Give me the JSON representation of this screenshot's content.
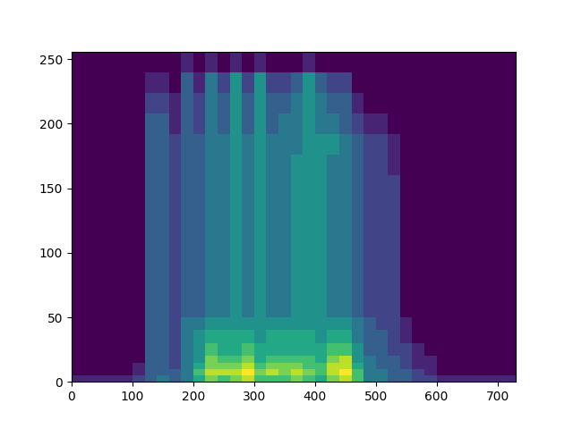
{
  "chart_data": {
    "type": "heatmap",
    "color": "viridis",
    "x_edges": [
      0,
      20,
      40,
      60,
      80,
      100,
      120,
      140,
      160,
      180,
      200,
      220,
      240,
      260,
      280,
      300,
      320,
      340,
      360,
      380,
      400,
      420,
      440,
      460,
      480,
      500,
      520,
      540,
      560,
      580,
      600,
      620,
      640,
      660,
      680,
      700,
      720,
      730
    ],
    "y_edges": [
      0,
      5,
      10,
      15,
      20,
      30,
      40,
      50,
      64,
      80,
      96,
      112,
      128,
      144,
      160,
      176,
      192,
      208,
      224,
      240,
      256
    ],
    "cells_by_x": [
      [
        1,
        0,
        0,
        0,
        0,
        0,
        0,
        0,
        0,
        0,
        0,
        0,
        0,
        0,
        0,
        0,
        0,
        0,
        0,
        0
      ],
      [
        1,
        0,
        0,
        0,
        0,
        0,
        0,
        0,
        0,
        0,
        0,
        0,
        0,
        0,
        0,
        0,
        0,
        0,
        0,
        0
      ],
      [
        1,
        0,
        0,
        0,
        0,
        0,
        0,
        0,
        0,
        0,
        0,
        0,
        0,
        0,
        0,
        0,
        0,
        0,
        0,
        0
      ],
      [
        1,
        0,
        0,
        0,
        0,
        0,
        0,
        0,
        0,
        0,
        0,
        0,
        0,
        0,
        0,
        0,
        0,
        0,
        0,
        0
      ],
      [
        1,
        0,
        0,
        0,
        0,
        0,
        0,
        0,
        0,
        0,
        0,
        0,
        0,
        0,
        0,
        0,
        0,
        0,
        0,
        0
      ],
      [
        2,
        1,
        1,
        0,
        0,
        0,
        0,
        0,
        0,
        0,
        0,
        0,
        0,
        0,
        0,
        0,
        0,
        0,
        0,
        0
      ],
      [
        3,
        3,
        3,
        3,
        3,
        3,
        3,
        3,
        3,
        3,
        3,
        3,
        3,
        3,
        3,
        3,
        3,
        2,
        1,
        0
      ],
      [
        4,
        3,
        3,
        3,
        3,
        3,
        3,
        3,
        3,
        3,
        3,
        3,
        3,
        3,
        3,
        3,
        3,
        2,
        1,
        0
      ],
      [
        3,
        3,
        2,
        2,
        2,
        2,
        2,
        2,
        2,
        2,
        2,
        2,
        2,
        2,
        2,
        2,
        1,
        1,
        0,
        0
      ],
      [
        4,
        4,
        4,
        4,
        4,
        4,
        4,
        3,
        3,
        3,
        3,
        3,
        3,
        3,
        3,
        3,
        3,
        3,
        3,
        1
      ],
      [
        6,
        7,
        6,
        5,
        5,
        5,
        4,
        3,
        3,
        3,
        3,
        3,
        3,
        3,
        3,
        3,
        2,
        2,
        1,
        0
      ],
      [
        8,
        9,
        8,
        8,
        7,
        6,
        5,
        4,
        4,
        4,
        4,
        4,
        4,
        4,
        4,
        4,
        4,
        4,
        4,
        1
      ],
      [
        7,
        9,
        8,
        7,
        6,
        6,
        5,
        4,
        4,
        4,
        4,
        4,
        4,
        4,
        4,
        4,
        3,
        3,
        2,
        0
      ],
      [
        8,
        9,
        8,
        7,
        6,
        6,
        5,
        5,
        5,
        5,
        5,
        5,
        5,
        5,
        5,
        5,
        5,
        5,
        5,
        1
      ],
      [
        9,
        10,
        9,
        8,
        7,
        6,
        5,
        4,
        4,
        4,
        4,
        4,
        4,
        4,
        4,
        4,
        3,
        3,
        2,
        0
      ],
      [
        7,
        8,
        7,
        6,
        6,
        5,
        5,
        5,
        5,
        5,
        5,
        5,
        5,
        5,
        5,
        5,
        5,
        5,
        5,
        1
      ],
      [
        7,
        9,
        8,
        7,
        6,
        6,
        5,
        4,
        4,
        4,
        4,
        4,
        4,
        4,
        4,
        4,
        3,
        3,
        2,
        0
      ],
      [
        7,
        8,
        8,
        7,
        6,
        6,
        5,
        4,
        4,
        4,
        4,
        4,
        4,
        4,
        4,
        4,
        4,
        3,
        2,
        0
      ],
      [
        8,
        9,
        8,
        7,
        6,
        6,
        5,
        5,
        5,
        5,
        5,
        5,
        5,
        5,
        5,
        4,
        4,
        4,
        3,
        0
      ],
      [
        7,
        8,
        7,
        7,
        6,
        6,
        5,
        5,
        5,
        5,
        5,
        5,
        5,
        5,
        5,
        5,
        5,
        5,
        5,
        1
      ],
      [
        6,
        7,
        7,
        6,
        6,
        5,
        5,
        5,
        5,
        5,
        5,
        5,
        5,
        5,
        5,
        5,
        4,
        4,
        3,
        0
      ],
      [
        8,
        9,
        9,
        8,
        7,
        6,
        5,
        4,
        4,
        4,
        4,
        4,
        4,
        4,
        4,
        5,
        4,
        3,
        2,
        0
      ],
      [
        9,
        10,
        9,
        9,
        7,
        6,
        5,
        4,
        4,
        4,
        4,
        4,
        4,
        4,
        4,
        4,
        3,
        3,
        2,
        0
      ],
      [
        7,
        7,
        6,
        5,
        5,
        4,
        4,
        3,
        3,
        3,
        3,
        3,
        3,
        3,
        3,
        3,
        2,
        1,
        0,
        0
      ],
      [
        4,
        4,
        4,
        4,
        3,
        3,
        3,
        2,
        2,
        2,
        2,
        2,
        2,
        2,
        2,
        2,
        1,
        0,
        0,
        0
      ],
      [
        4,
        4,
        3,
        3,
        3,
        3,
        2,
        2,
        2,
        2,
        2,
        2,
        2,
        2,
        2,
        2,
        1,
        0,
        0,
        0
      ],
      [
        3,
        3,
        3,
        3,
        2,
        2,
        2,
        2,
        2,
        2,
        2,
        2,
        2,
        2,
        1,
        1,
        0,
        0,
        0,
        0
      ],
      [
        3,
        3,
        2,
        2,
        2,
        1,
        1,
        0,
        0,
        0,
        0,
        0,
        0,
        0,
        0,
        0,
        0,
        0,
        0,
        0
      ],
      [
        2,
        2,
        1,
        1,
        1,
        0,
        0,
        0,
        0,
        0,
        0,
        0,
        0,
        0,
        0,
        0,
        0,
        0,
        0,
        0
      ],
      [
        2,
        1,
        1,
        1,
        0,
        0,
        0,
        0,
        0,
        0,
        0,
        0,
        0,
        0,
        0,
        0,
        0,
        0,
        0,
        0
      ],
      [
        1,
        0,
        0,
        0,
        0,
        0,
        0,
        0,
        0,
        0,
        0,
        0,
        0,
        0,
        0,
        0,
        0,
        0,
        0,
        0
      ],
      [
        1,
        0,
        0,
        0,
        0,
        0,
        0,
        0,
        0,
        0,
        0,
        0,
        0,
        0,
        0,
        0,
        0,
        0,
        0,
        0
      ],
      [
        1,
        0,
        0,
        0,
        0,
        0,
        0,
        0,
        0,
        0,
        0,
        0,
        0,
        0,
        0,
        0,
        0,
        0,
        0,
        0
      ],
      [
        1,
        0,
        0,
        0,
        0,
        0,
        0,
        0,
        0,
        0,
        0,
        0,
        0,
        0,
        0,
        0,
        0,
        0,
        0,
        0
      ],
      [
        1,
        0,
        0,
        0,
        0,
        0,
        0,
        0,
        0,
        0,
        0,
        0,
        0,
        0,
        0,
        0,
        0,
        0,
        0,
        0
      ],
      [
        1,
        0,
        0,
        0,
        0,
        0,
        0,
        0,
        0,
        0,
        0,
        0,
        0,
        0,
        0,
        0,
        0,
        0,
        0,
        0
      ],
      [
        1,
        0,
        0,
        0,
        0,
        0,
        0,
        0,
        0,
        0,
        0,
        0,
        0,
        0,
        0,
        0,
        0,
        0,
        0,
        0
      ]
    ],
    "zlim": [
      0,
      10
    ],
    "xlim": [
      0,
      730
    ],
    "ylim": [
      0,
      256
    ],
    "xticks": [
      0,
      100,
      200,
      300,
      400,
      500,
      600,
      700
    ],
    "yticks": [
      0,
      50,
      100,
      150,
      200,
      250
    ]
  }
}
